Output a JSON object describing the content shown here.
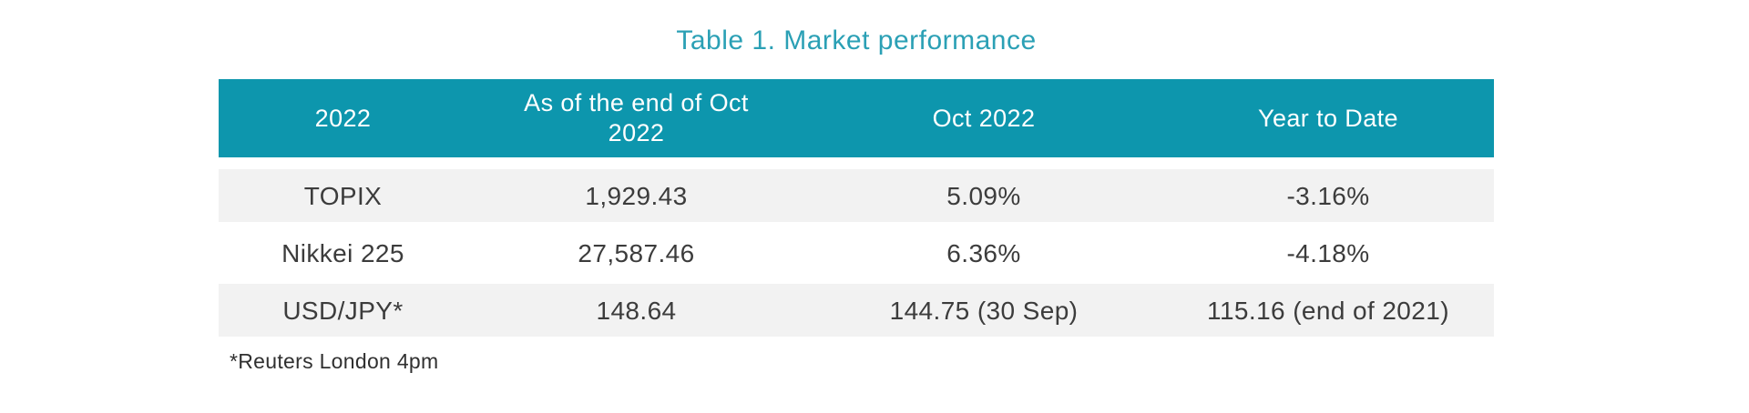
{
  "title": "Table 1. Market performance",
  "colors": {
    "title_teal": "#2BA0B5",
    "header_bg": "#0D96AD",
    "header_text": "#FFFFFF",
    "shaded_row_bg": "#F2F2F2",
    "body_text": "#3C3C3C"
  },
  "table": {
    "columns": [
      {
        "label": "2022"
      },
      {
        "label": "As of the end of Oct 2022"
      },
      {
        "label": "Oct 2022"
      },
      {
        "label": "Year to Date"
      }
    ],
    "rows": [
      {
        "cells": [
          "TOPIX",
          "1,929.43",
          "5.09%",
          "-3.16%"
        ]
      },
      {
        "cells": [
          "Nikkei 225",
          "27,587.46",
          "6.36%",
          "-4.18%"
        ]
      },
      {
        "cells": [
          "USD/JPY*",
          "148.64",
          "144.75 (30 Sep)",
          "115.16 (end of 2021)"
        ]
      }
    ]
  },
  "footnote": "*Reuters London 4pm"
}
